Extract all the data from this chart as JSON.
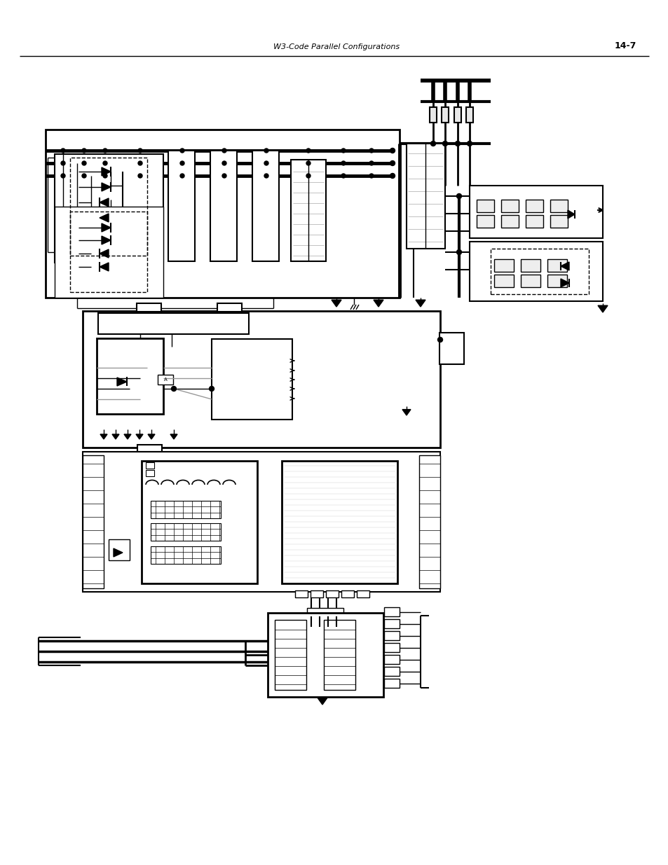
{
  "title": "W3-Code Parallel Configurations",
  "page_num": "14-7",
  "bg_color": "#ffffff",
  "line_color": "#000000",
  "title_fontsize": 8,
  "page_fontsize": 9
}
